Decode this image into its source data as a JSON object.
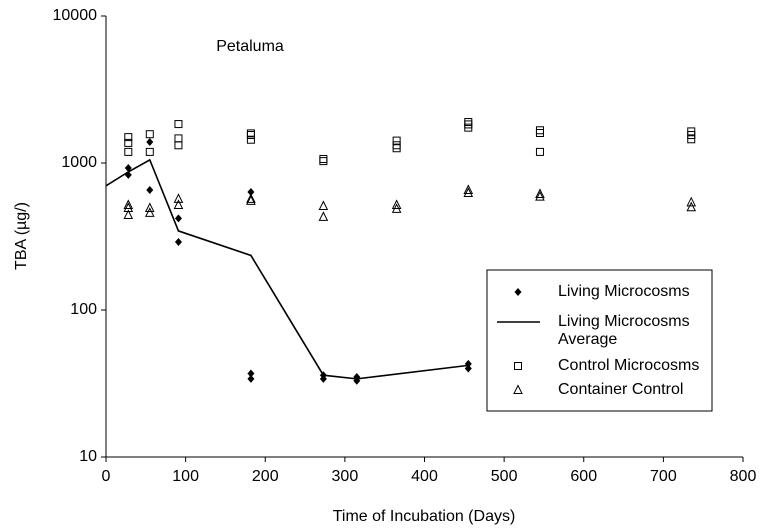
{
  "chart_data": {
    "type": "scatter",
    "title": "Petaluma",
    "x_label": "Time of Incubation (Days)",
    "y_label": "TBA (µg/)",
    "xlim": [
      0,
      800
    ],
    "xticks": [
      0,
      100,
      200,
      300,
      400,
      500,
      600,
      700,
      800
    ],
    "ylim": [
      10,
      10000
    ],
    "yticks": [
      10,
      100,
      1000,
      10000
    ],
    "log_y": true,
    "legend": "lower right",
    "series": [
      {
        "name": "Living Microcosms",
        "color": "#000000",
        "style": "marker",
        "marker": "diamond",
        "x": [
          28,
          28,
          55,
          55,
          91,
          91,
          182,
          182,
          182,
          273,
          273,
          315,
          315,
          455,
          455
        ],
        "values": [
          925,
          830,
          1390,
          655,
          420,
          290,
          635,
          37,
          34,
          36,
          34,
          35,
          33,
          43,
          40
        ]
      },
      {
        "name": "Living Microcosms Average",
        "color": "#000000",
        "style": "line",
        "x": [
          0,
          28,
          55,
          91,
          182,
          273,
          315,
          455
        ],
        "values": [
          700,
          870,
          1050,
          345,
          235,
          36,
          34,
          42
        ]
      },
      {
        "name": "Control Microcosms",
        "color": "#000000",
        "style": "marker",
        "marker": "square",
        "x": [
          28,
          28,
          28,
          55,
          55,
          91,
          91,
          91,
          182,
          182,
          182,
          273,
          273,
          365,
          365,
          365,
          455,
          455,
          455,
          545,
          545,
          545,
          735,
          735,
          735
        ],
        "values": [
          1500,
          1370,
          1190,
          1570,
          1190,
          1840,
          1470,
          1320,
          1590,
          1550,
          1440,
          1065,
          1030,
          1420,
          1320,
          1260,
          1900,
          1830,
          1740,
          1670,
          1600,
          1190,
          1640,
          1550,
          1450
        ]
      },
      {
        "name": "Container Control",
        "color": "#000000",
        "style": "marker",
        "marker": "triangle",
        "x": [
          28,
          28,
          28,
          55,
          55,
          91,
          91,
          182,
          182,
          273,
          273,
          365,
          365,
          455,
          455,
          545,
          545,
          735,
          735
        ],
        "values": [
          518,
          494,
          443,
          494,
          458,
          570,
          518,
          570,
          553,
          510,
          430,
          518,
          487,
          655,
          625,
          615,
          590,
          540,
          500
        ]
      }
    ]
  }
}
